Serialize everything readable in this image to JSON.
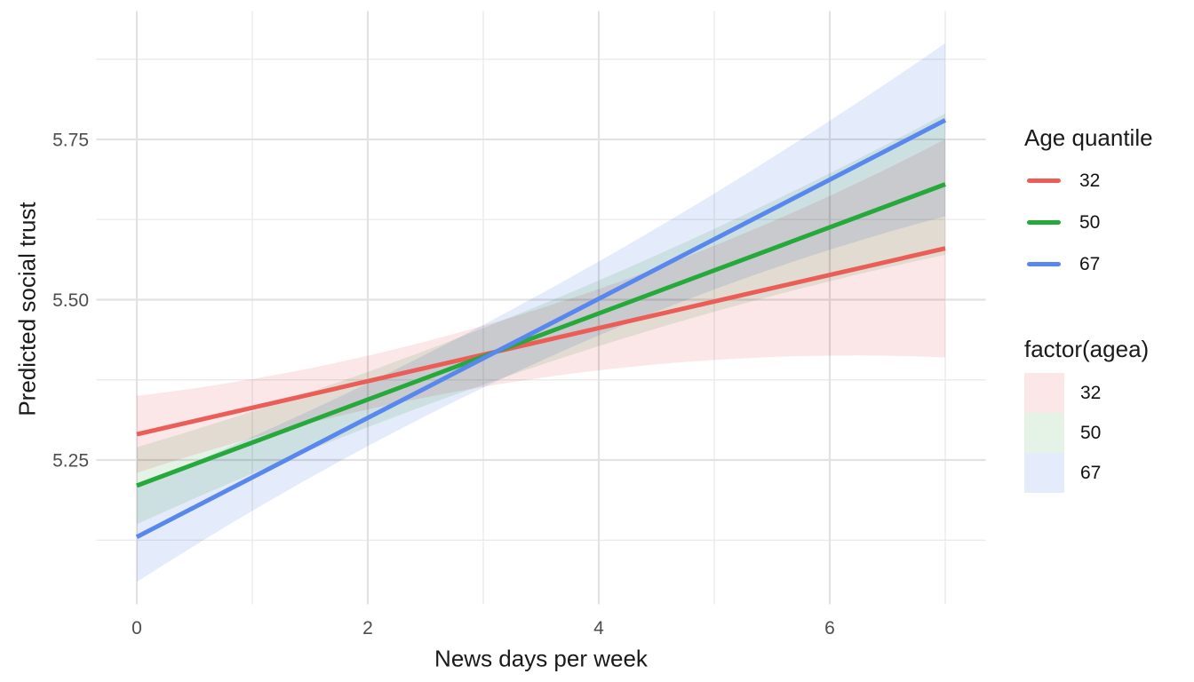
{
  "chart_data": {
    "type": "line",
    "title": "",
    "xlabel": "News days per week",
    "ylabel": "Predicted social trust",
    "xlim": [
      -0.35,
      7.35
    ],
    "ylim": [
      5.025,
      5.95
    ],
    "x_ticks": [
      0,
      2,
      4,
      6
    ],
    "x_tick_labels": [
      "0",
      "2",
      "4",
      "6"
    ],
    "x_minor_ticks": [
      1,
      3,
      5,
      7
    ],
    "y_ticks": [
      5.25,
      5.5,
      5.75
    ],
    "y_tick_labels": [
      "5.25",
      "5.50",
      "5.75"
    ],
    "y_minor_ticks": [
      5.125,
      5.375,
      5.625,
      5.875
    ],
    "grid": {
      "major_color": "#E2E2E2",
      "minor_color": "#EBEBEB",
      "major_width": 2.2,
      "minor_width": 1.4
    },
    "style": {
      "background": "#FFFFFF",
      "tick_label_color": "#4D4D4D",
      "title_color": "#1A1A1A",
      "line_width": 5
    },
    "series": [
      {
        "name": "32",
        "color": "#EB5D57",
        "x": [
          0,
          7
        ],
        "y": [
          5.29,
          5.58
        ],
        "band_fill": "#FBE7E8",
        "band_x": [
          0,
          3.2,
          7
        ],
        "band_lower": [
          5.23,
          5.37,
          5.41
        ],
        "band_upper": [
          5.35,
          5.47,
          5.75
        ]
      },
      {
        "name": "50",
        "color": "#25A93B",
        "x": [
          0,
          7
        ],
        "y": [
          5.21,
          5.68
        ],
        "band_fill": "#E5F2E6",
        "band_x": [
          0,
          3.2,
          7
        ],
        "band_lower": [
          5.15,
          5.38,
          5.57
        ],
        "band_upper": [
          5.27,
          5.47,
          5.79
        ]
      },
      {
        "name": "67",
        "color": "#5887ED",
        "x": [
          0,
          7
        ],
        "y": [
          5.13,
          5.78
        ],
        "band_fill": "#E4EBFA",
        "band_x": [
          0,
          3.2,
          7
        ],
        "band_lower": [
          5.06,
          5.38,
          5.63
        ],
        "band_upper": [
          5.21,
          5.48,
          5.9
        ]
      }
    ],
    "legend_line": {
      "title": "Age quantile",
      "entries": [
        {
          "label": "32",
          "color": "#EB5D57"
        },
        {
          "label": "50",
          "color": "#25A93B"
        },
        {
          "label": "67",
          "color": "#5887ED"
        }
      ]
    },
    "legend_fill": {
      "title": "factor(agea)",
      "entries": [
        {
          "label": "32",
          "color": "#FBE7E8"
        },
        {
          "label": "50",
          "color": "#E5F2E6"
        },
        {
          "label": "67",
          "color": "#E4EBFA"
        }
      ]
    }
  }
}
